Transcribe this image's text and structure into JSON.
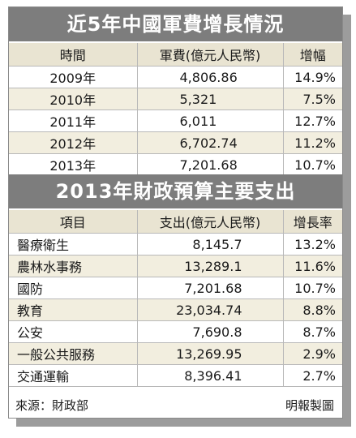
{
  "table1": {
    "title": "近5年中國軍費增長情況",
    "headers": [
      "時間",
      "軍費(億元人民幣)",
      "增幅"
    ],
    "rows": [
      [
        "2009年",
        "4,806.86",
        "14.9%"
      ],
      [
        "2010年",
        "5,321",
        "7.5%"
      ],
      [
        "2011年",
        "6,011",
        "12.7%"
      ],
      [
        "2012年",
        "6,702.74",
        "11.2%"
      ],
      [
        "2013年",
        "7,201.68",
        "10.7%"
      ]
    ]
  },
  "table2": {
    "title": "2013年財政預算主要支出",
    "headers": [
      "項目",
      "支出(億元人民幣)",
      "增長率"
    ],
    "rows": [
      [
        "醫療衛生",
        "8,145.7",
        "13.2%"
      ],
      [
        "農林水事務",
        "13,289.1",
        "11.6%"
      ],
      [
        "國防",
        "7,201.68",
        "10.7%"
      ],
      [
        "教育",
        "23,034.74",
        "8.8%"
      ],
      [
        "公安",
        "7,690.8",
        "8.7%"
      ],
      [
        "一般公共服務",
        "13,269.95",
        "2.9%"
      ],
      [
        "交通運輸",
        "8,396.41",
        "2.7%"
      ]
    ]
  },
  "footer": {
    "source": "來源：財政部",
    "credit": "明報製圖"
  }
}
